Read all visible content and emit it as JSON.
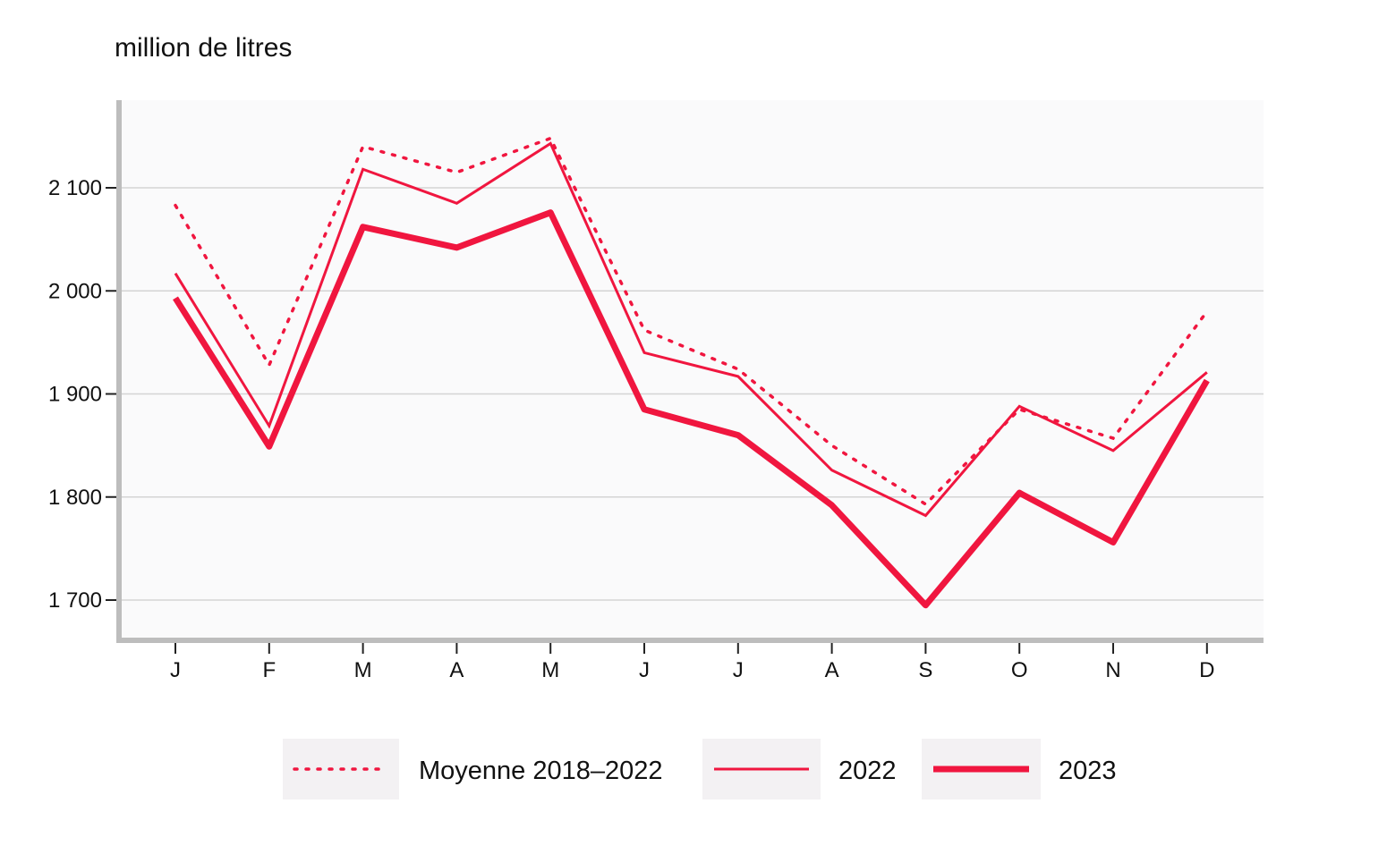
{
  "chart_data": {
    "type": "line",
    "ylabel": "million de litres",
    "xlabel": "",
    "categories": [
      "J",
      "F",
      "M",
      "A",
      "M",
      "J",
      "J",
      "A",
      "S",
      "O",
      "N",
      "D"
    ],
    "yticks": [
      "1 700",
      "1 800",
      "1 900",
      "2 000",
      "2 100"
    ],
    "ytick_values": [
      1700,
      1800,
      1900,
      2000,
      2100
    ],
    "ylim": [
      1660,
      2185
    ],
    "grid": true,
    "legend_position": "bottom",
    "series": [
      {
        "name": "Moyenne 2018–2022",
        "style": "dotted",
        "color": "#f0163f",
        "values": [
          2083,
          1928,
          2140,
          2115,
          2148,
          1962,
          1924,
          1850,
          1793,
          1885,
          1857,
          1980
        ]
      },
      {
        "name": "2022",
        "style": "thin",
        "color": "#f0163f",
        "values": [
          2017,
          1869,
          2118,
          2085,
          2143,
          1940,
          1917,
          1826,
          1782,
          1888,
          1845,
          1921
        ]
      },
      {
        "name": "2023",
        "style": "thick",
        "color": "#f0163f",
        "values": [
          1993,
          1849,
          2062,
          2042,
          2076,
          1885,
          1860,
          1792,
          1695,
          1804,
          1756,
          1913
        ]
      }
    ]
  }
}
